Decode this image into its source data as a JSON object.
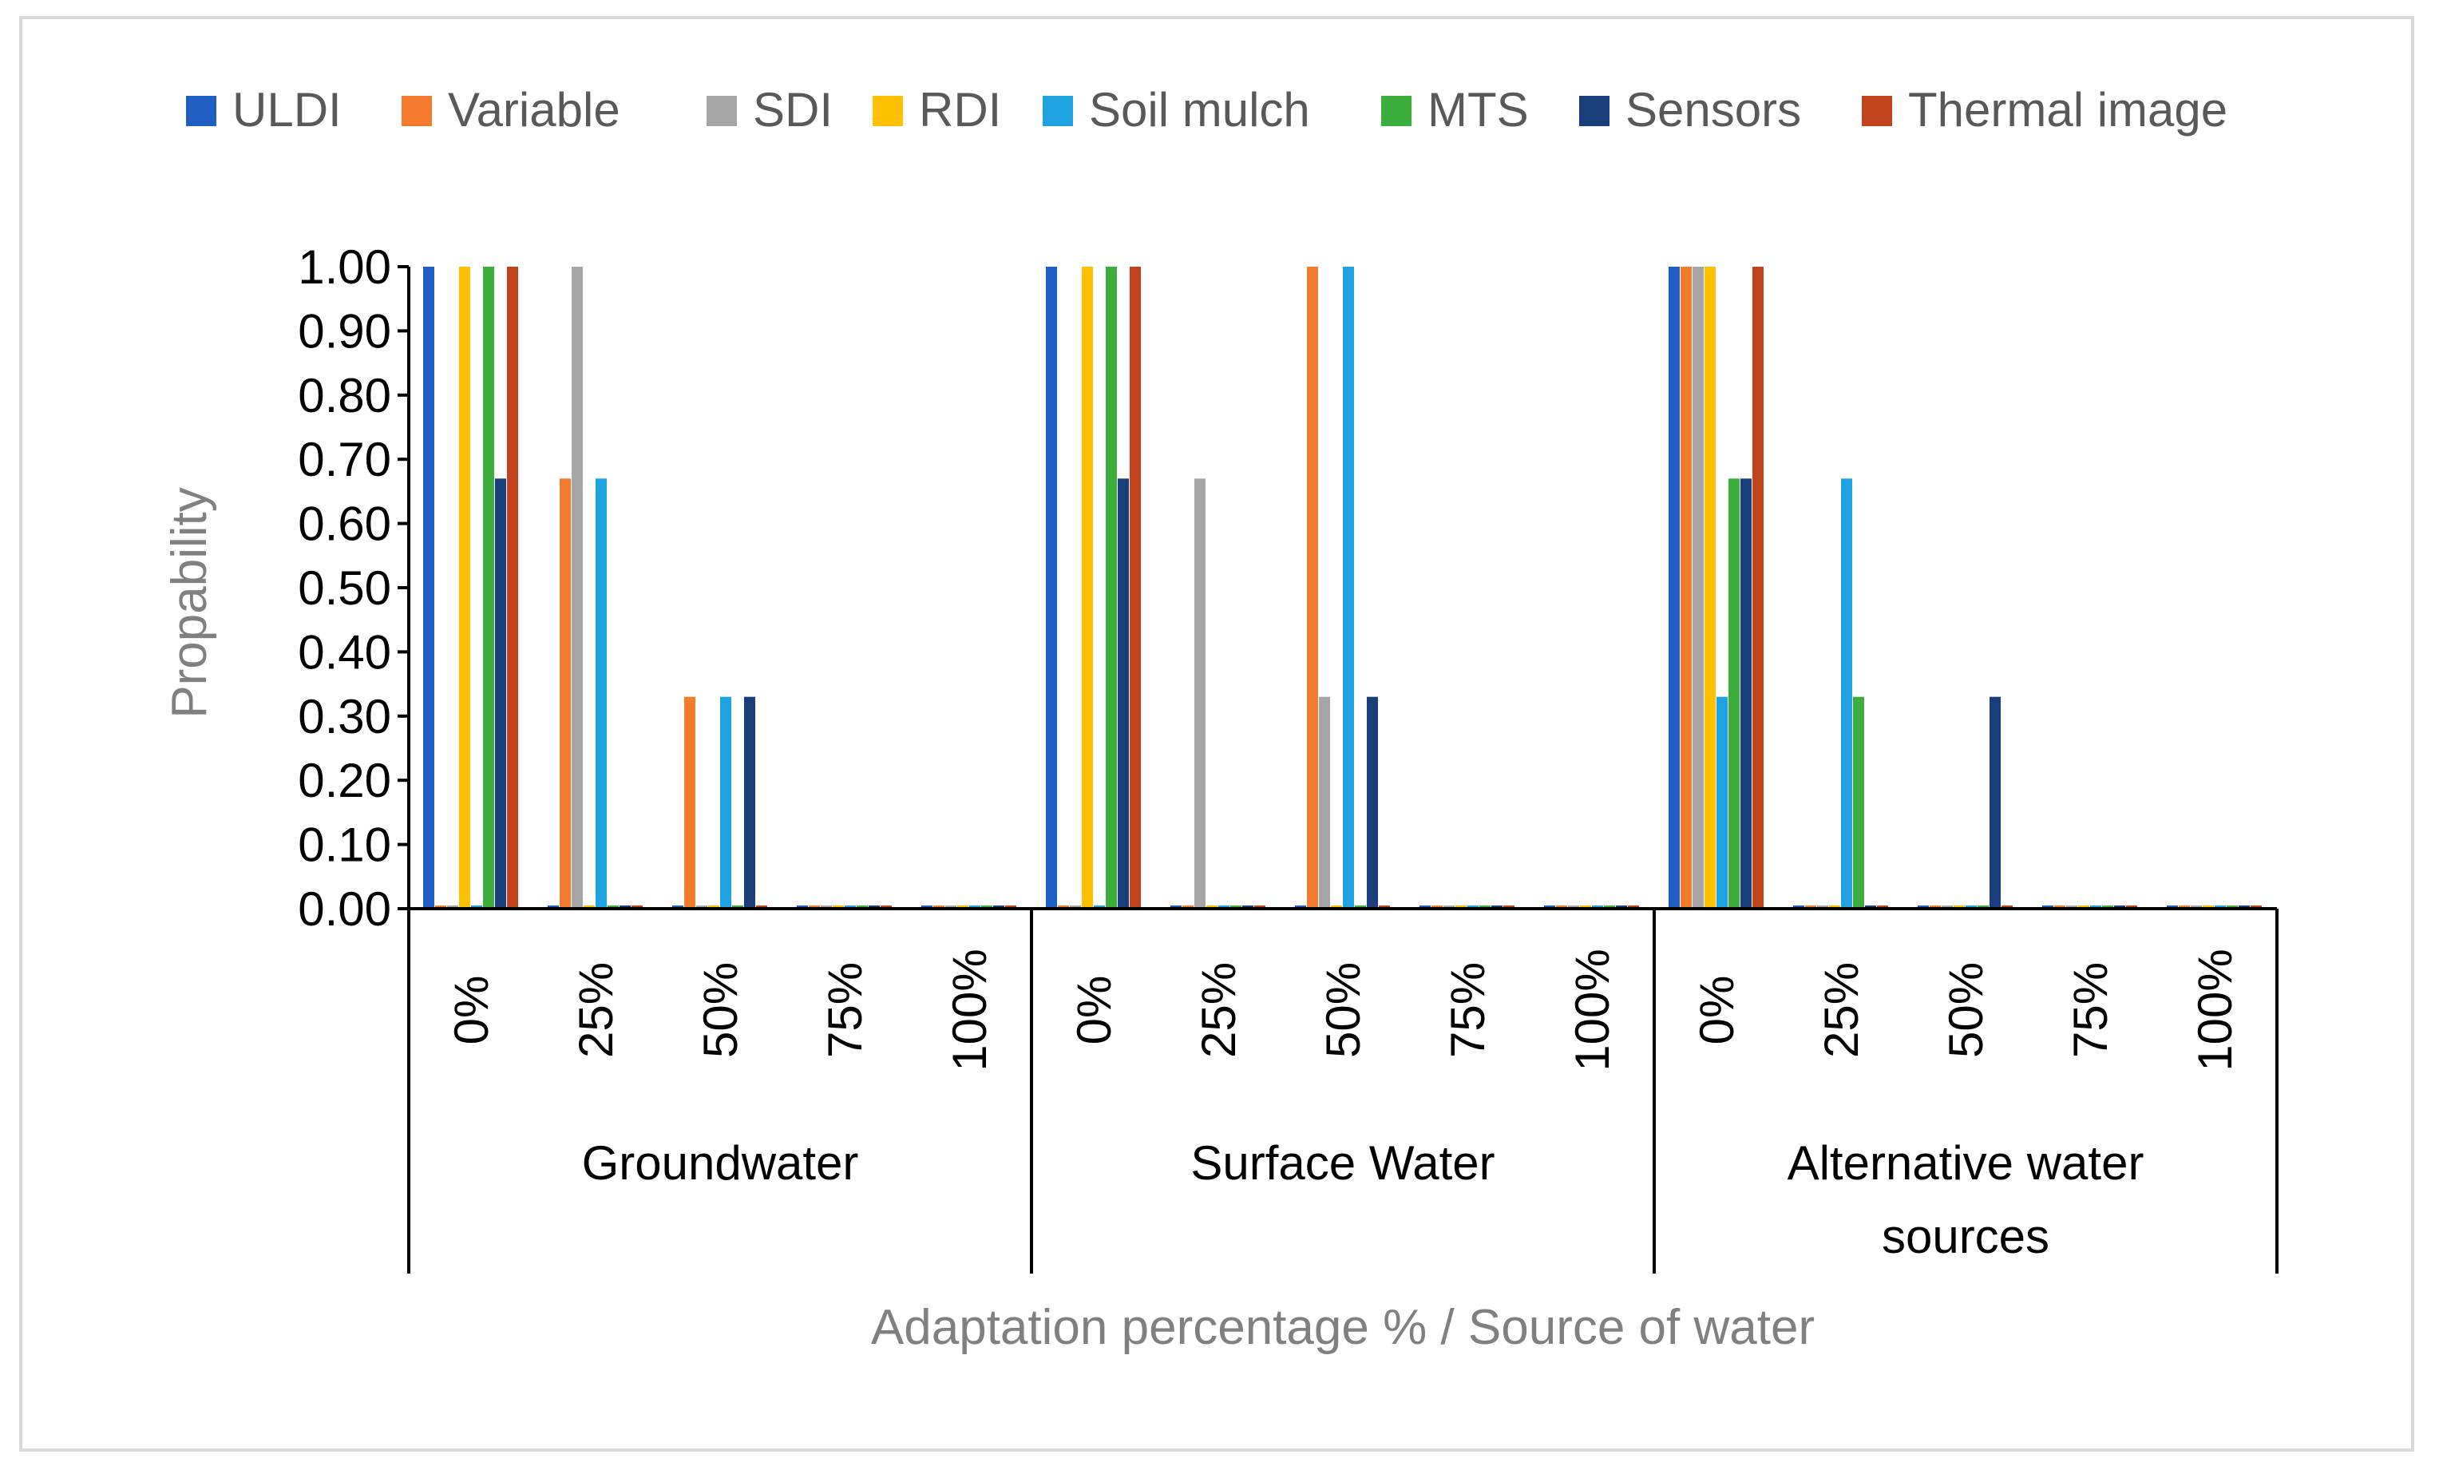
{
  "chart_data": {
    "type": "bar",
    "title": "",
    "ylabel": "Propability",
    "xlabel": "Adaptation percentage % / Source of water",
    "ylim": [
      0,
      1
    ],
    "yticks": [
      "0.00",
      "0.10",
      "0.20",
      "0.30",
      "0.40",
      "0.50",
      "0.60",
      "0.70",
      "0.80",
      "0.90",
      "1.00"
    ],
    "groups": [
      "Groundwater",
      "Surface Water",
      "Alternative water sources"
    ],
    "categories": [
      "0%",
      "25%",
      "50%",
      "75%",
      "100%"
    ],
    "legend_position": "top",
    "grid": false,
    "series": [
      {
        "name": "ULDI",
        "color": "#1f5fc4",
        "values": [
          [
            1,
            0,
            0,
            0,
            0
          ],
          [
            1,
            0,
            0,
            0,
            0
          ],
          [
            1,
            0,
            0,
            0,
            0
          ]
        ]
      },
      {
        "name": "Variable",
        "color": "#f47a2e",
        "values": [
          [
            0,
            0.67,
            0.33,
            0,
            0
          ],
          [
            0,
            0,
            1,
            0,
            0
          ],
          [
            1,
            0,
            0,
            0,
            0
          ]
        ]
      },
      {
        "name": "SDI",
        "color": "#a5a5a5",
        "values": [
          [
            0,
            1,
            0,
            0,
            0
          ],
          [
            0,
            0.67,
            0.33,
            0,
            0
          ],
          [
            1,
            0,
            0,
            0,
            0
          ]
        ]
      },
      {
        "name": "RDI",
        "color": "#ffc000",
        "values": [
          [
            1,
            0,
            0,
            0,
            0
          ],
          [
            1,
            0,
            0,
            0,
            0
          ],
          [
            1,
            0,
            0,
            0,
            0
          ]
        ]
      },
      {
        "name": "Soil mulch",
        "color": "#1ea2e0",
        "values": [
          [
            0,
            0.67,
            0.33,
            0,
            0
          ],
          [
            0,
            0,
            1,
            0,
            0
          ],
          [
            0.33,
            0.67,
            0,
            0,
            0
          ]
        ]
      },
      {
        "name": "MTS",
        "color": "#3cae3c",
        "values": [
          [
            1,
            0,
            0,
            0,
            0
          ],
          [
            1,
            0,
            0,
            0,
            0
          ],
          [
            0.67,
            0.33,
            0,
            0,
            0
          ]
        ]
      },
      {
        "name": "Sensors",
        "color": "#1a3e7a",
        "values": [
          [
            0.67,
            0,
            0.33,
            0,
            0
          ],
          [
            0.67,
            0,
            0.33,
            0,
            0
          ],
          [
            0.67,
            0,
            0.33,
            0,
            0
          ]
        ]
      },
      {
        "name": "Thermal image",
        "color": "#c0431c",
        "values": [
          [
            1,
            0,
            0,
            0,
            0
          ],
          [
            1,
            0,
            0,
            0,
            0
          ],
          [
            1,
            0,
            0,
            0,
            0
          ]
        ]
      }
    ]
  }
}
